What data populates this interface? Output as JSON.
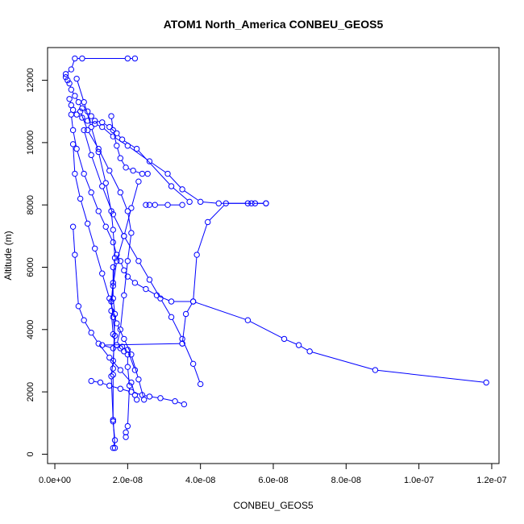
{
  "chart_data": {
    "type": "line",
    "title": "ATOM1 North_America CONBEU_GEOS5",
    "xlabel": "CONBEU_GEOS5",
    "ylabel": "Altitude (m)",
    "xlim": [
      -2e-09,
      1.22e-07
    ],
    "ylim": [
      -300,
      13050
    ],
    "x_ticks": [
      0,
      2e-08,
      4e-08,
      6e-08,
      8e-08,
      1e-07,
      1.2e-07
    ],
    "x_tick_labels": [
      "0.0e+00",
      "2.0e-08",
      "4.0e-08",
      "6.0e-08",
      "8.0e-08",
      "1.0e-07",
      "1.2e-07"
    ],
    "y_ticks": [
      0,
      2000,
      4000,
      6000,
      8000,
      10000,
      12000
    ],
    "y_tick_labels": [
      "0",
      "2000",
      "4000",
      "6000",
      "8000",
      "10000",
      "12000"
    ],
    "series_color": "#0000ff",
    "series": [
      {
        "x": [
          2.2e-08,
          2e-08,
          7.5e-09,
          5.5e-09,
          4.5e-09,
          3e-09,
          3e-09,
          3.5e-09,
          4e-09,
          4.5e-09,
          5.5e-09,
          6.5e-09,
          7.5e-09,
          9e-09,
          1e-08,
          1.1e-08,
          1.3e-08,
          1.5e-08,
          1.7e-08,
          1.85e-08,
          2.25e-08,
          3.2e-08,
          3.7e-08
        ],
        "y": [
          12700,
          12700,
          12700,
          12700,
          12350,
          12200,
          12100,
          12000,
          11900,
          11700,
          11500,
          11300,
          11100,
          11000,
          10850,
          10700,
          10650,
          10500,
          10300,
          10100,
          9800,
          8600,
          8100
        ]
      },
      {
        "x": [
          4e-09,
          4.5e-09,
          5e-09,
          6e-09,
          7.5e-09,
          9e-09,
          1.1e-08,
          1.3e-08,
          1.6e-08,
          2e-08,
          2.6e-08,
          3.1e-08,
          3.5e-08,
          4e-08,
          4.5e-08,
          5.3e-08,
          5.4e-08,
          5.8e-08
        ],
        "y": [
          11400,
          11200,
          11050,
          10900,
          10800,
          10700,
          10600,
          10500,
          10200,
          9900,
          9400,
          9000,
          8500,
          8100,
          8050,
          8050,
          8050,
          8050
        ]
      },
      {
        "x": [
          5.8e-08,
          5.5e-08,
          4.7e-08,
          4.2e-08,
          3.9e-08,
          3.8e-08,
          3.6e-08,
          3.5e-08
        ],
        "y": [
          8050,
          8050,
          8050,
          7450,
          6400,
          4900,
          4500,
          3550
        ]
      },
      {
        "x": [
          3.5e-08,
          1.3e-08,
          1.6e-08,
          1.85e-08,
          2e-08,
          2.2e-08
        ],
        "y": [
          3550,
          3500,
          3400,
          3450,
          3350,
          2700
        ]
      },
      {
        "x": [
          4.5e-09,
          5e-09,
          6e-09,
          8e-09,
          1e-08,
          1.2e-08,
          1.4e-08,
          1.6e-08,
          1.7e-08,
          1.8e-08,
          1.9e-08,
          2e-08,
          2.2e-08,
          2.5e-08,
          2.8e-08,
          3.2e-08,
          3.8e-08,
          5.3e-08,
          6.3e-08,
          6.7e-08,
          7e-08,
          8.8e-08,
          1.185e-07
        ],
        "y": [
          10900,
          10400,
          9800,
          9000,
          8400,
          7800,
          7300,
          6800,
          6400,
          6200,
          5900,
          5700,
          5500,
          5300,
          5100,
          4900,
          4900,
          4300,
          3700,
          3500,
          3300,
          2700,
          2300
        ]
      },
      {
        "x": [
          6e-09,
          8e-09,
          1e-08,
          1.2e-08,
          1.4e-08,
          1.55e-08,
          1.6e-08,
          1.65e-08,
          1.6e-08,
          1.55e-08,
          1.6e-08,
          1.65e-08,
          1.6e-08,
          1.55e-08,
          1.6e-08,
          1.65e-08
        ],
        "y": [
          12050,
          11300,
          10500,
          9700,
          8700,
          7800,
          7200,
          6300,
          5500,
          4900,
          4400,
          3800,
          3000,
          2500,
          1100,
          200
        ]
      },
      {
        "x": [
          7e-09,
          9e-09,
          1.2e-08,
          1.5e-08,
          1.8e-08,
          2e-08,
          2.1e-08,
          2e-08,
          1.9e-08,
          1.8e-08,
          1.7e-08,
          1.8e-08,
          1.9e-08,
          2e-08,
          2e-08,
          2.05e-08,
          2e-08,
          1.95e-08,
          1.95e-08
        ],
        "y": [
          11000,
          10400,
          9800,
          9100,
          8400,
          7800,
          7100,
          6200,
          5100,
          4000,
          3500,
          3400,
          3300,
          3200,
          2800,
          2200,
          900,
          700,
          550
        ]
      },
      {
        "x": [
          8e-09,
          1e-08,
          1.3e-08,
          1.6e-08,
          1.9e-08,
          2.3e-08,
          2.6e-08,
          2.9e-08,
          3.2e-08,
          3.5e-08,
          3.8e-08,
          4e-08
        ],
        "y": [
          10400,
          9600,
          8600,
          7700,
          7000,
          6200,
          5600,
          5000,
          4400,
          3700,
          2900,
          2250
        ]
      },
      {
        "x": [
          5e-09,
          5.5e-09,
          7e-09,
          9e-09,
          1.1e-08,
          1.3e-08,
          1.5e-08,
          1.7e-08,
          1.9e-08,
          2.1e-08,
          2.3e-08,
          2.45e-08
        ],
        "y": [
          9950,
          9000,
          8200,
          7400,
          6600,
          5800,
          5000,
          4200,
          3700,
          3200,
          2400,
          1750
        ]
      },
      {
        "x": [
          1e-08,
          1.25e-08,
          1.5e-08,
          1.8e-08,
          2.1e-08,
          2.4e-08,
          2.6e-08,
          2.9e-08,
          3.3e-08,
          3.55e-08
        ],
        "y": [
          2350,
          2300,
          2200,
          2100,
          2000,
          1900,
          1850,
          1800,
          1700,
          1600
        ]
      },
      {
        "x": [
          5e-09,
          5.5e-09,
          6.5e-09,
          8e-09,
          1e-08,
          1.2e-08,
          1.5e-08,
          1.8e-08,
          2.1e-08,
          2.2e-08,
          2.25e-08
        ],
        "y": [
          7300,
          6400,
          4750,
          4300,
          3900,
          3550,
          3100,
          2700,
          2300,
          1900,
          1750
        ]
      },
      {
        "x": [
          1.55e-08,
          1.6e-08,
          1.7e-08,
          1.8e-08,
          1.95e-08,
          2.15e-08,
          2.4e-08,
          2.55e-08
        ],
        "y": [
          10850,
          10400,
          9900,
          9500,
          9200,
          9100,
          9000,
          9000
        ]
      },
      {
        "x": [
          2.3e-08,
          2.1e-08,
          1.9e-08,
          1.7e-08,
          1.6e-08,
          1.55e-08,
          1.6e-08
        ],
        "y": [
          8750,
          7900,
          7000,
          6200,
          5400,
          4600,
          3850
        ]
      },
      {
        "x": [
          2.5e-08,
          2.6e-08,
          2.75e-08,
          3.1e-08,
          3.5e-08
        ],
        "y": [
          8000,
          8000,
          8000,
          8000,
          8000
        ]
      },
      {
        "x": [
          1.6e-08,
          1.6e-08,
          1.65e-08,
          1.6e-08,
          1.6e-08,
          1.6e-08,
          1.65e-08,
          1.6e-08
        ],
        "y": [
          6000,
          5000,
          4500,
          2750,
          2550,
          1050,
          450,
          200
        ]
      }
    ]
  }
}
